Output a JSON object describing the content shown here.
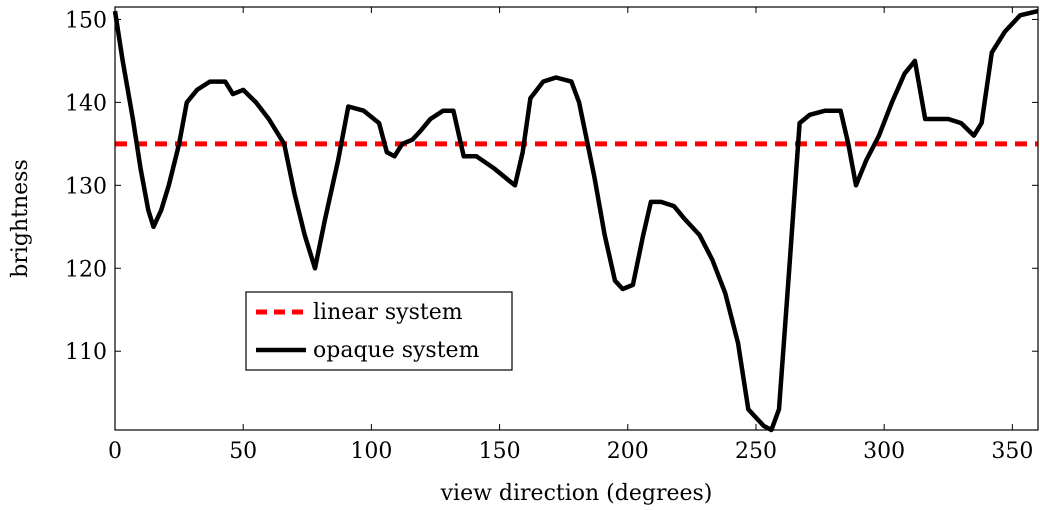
{
  "chart_data": {
    "type": "line",
    "title": "",
    "xlabel": "view direction (degrees)",
    "ylabel": "brightness",
    "xlim": [
      0,
      360
    ],
    "ylim": [
      100.5,
      151.5
    ],
    "xticks": [
      0,
      50,
      100,
      150,
      200,
      250,
      300,
      350
    ],
    "yticks": [
      110,
      120,
      130,
      140,
      150
    ],
    "grid": false,
    "legend_position": "lower-left",
    "series": [
      {
        "name": "linear system",
        "style": "dashed",
        "color": "#ff0000",
        "x": [
          0,
          360
        ],
        "y": [
          135,
          135
        ]
      },
      {
        "name": "opaque system",
        "style": "solid",
        "color": "#000000",
        "x": [
          0,
          3,
          7,
          10,
          13,
          15,
          18,
          21,
          25,
          28,
          32,
          37,
          43,
          46,
          50,
          55,
          60,
          66,
          70,
          74,
          78,
          82,
          87,
          91,
          97,
          103,
          106,
          109,
          112,
          116,
          119,
          123,
          128,
          132,
          136,
          141,
          148,
          154,
          156,
          159,
          162,
          167,
          172,
          178,
          181,
          187,
          191,
          195,
          198,
          202,
          206,
          209,
          213,
          218,
          222,
          228,
          233,
          238,
          243,
          247,
          250,
          253,
          256,
          259,
          263,
          267,
          271,
          277,
          283,
          286,
          289,
          293,
          298,
          303,
          308,
          312,
          316,
          320,
          325,
          330,
          335,
          338,
          342,
          347,
          353,
          360
        ],
        "y": [
          151,
          145,
          138,
          132,
          127,
          125,
          127,
          130,
          135,
          140,
          141.5,
          142.5,
          142.5,
          141,
          141.5,
          140,
          138,
          135,
          129,
          124,
          120,
          126,
          133,
          139.5,
          139,
          137.5,
          134,
          133.5,
          135,
          135.5,
          136.5,
          138,
          139,
          139,
          133.5,
          133.5,
          132,
          130.5,
          130,
          134,
          140.5,
          142.5,
          143,
          142.5,
          140,
          131,
          124,
          118.5,
          117.5,
          118,
          124,
          128,
          128,
          127.5,
          126,
          124,
          121,
          117,
          111,
          103,
          102,
          101,
          100.5,
          103,
          120,
          137.5,
          138.5,
          139,
          139,
          135,
          130,
          133,
          136,
          140,
          143.5,
          145,
          138,
          138,
          138,
          137.5,
          136,
          137.5,
          146,
          148.5,
          150.5,
          151
        ]
      }
    ]
  }
}
